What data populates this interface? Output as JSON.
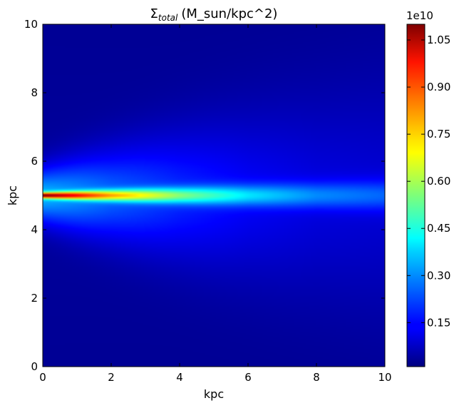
{
  "chart_data": {
    "type": "heatmap",
    "title": "(M_sun/kpc^2)",
    "title_symbol": "Σ",
    "title_subscript": "total",
    "xlabel": "kpc",
    "ylabel": "kpc",
    "xlim": [
      0,
      10
    ],
    "ylim": [
      0,
      10
    ],
    "xticks": [
      0,
      2,
      4,
      6,
      8,
      10
    ],
    "yticks": [
      0,
      2,
      4,
      6,
      8,
      10
    ],
    "xtick_labels": [
      "0",
      "2",
      "4",
      "6",
      "8",
      "10"
    ],
    "ytick_labels": [
      "0",
      "2",
      "4",
      "6",
      "8",
      "10"
    ],
    "colormap": "jet",
    "colorbar": {
      "range": [
        0.01,
        1.1
      ],
      "multiplier": "1e10",
      "ticks": [
        0.15,
        0.3,
        0.45,
        0.6,
        0.75,
        0.9,
        1.05
      ],
      "tick_labels": [
        "0.15",
        "0.30",
        "0.45",
        "0.60",
        "0.75",
        "0.90",
        "1.05"
      ]
    },
    "features": {
      "ridge_y": 5.0,
      "peak_value": 1.1,
      "peak_x": 0,
      "value_along_ridge": [
        {
          "x": 0,
          "v": 1.1
        },
        {
          "x": 1,
          "v": 0.95
        },
        {
          "x": 2,
          "v": 0.78
        },
        {
          "x": 4,
          "v": 0.55
        },
        {
          "x": 6,
          "v": 0.38
        },
        {
          "x": 8,
          "v": 0.28
        },
        {
          "x": 10,
          "v": 0.24
        }
      ],
      "background_value": 0.03
    }
  }
}
